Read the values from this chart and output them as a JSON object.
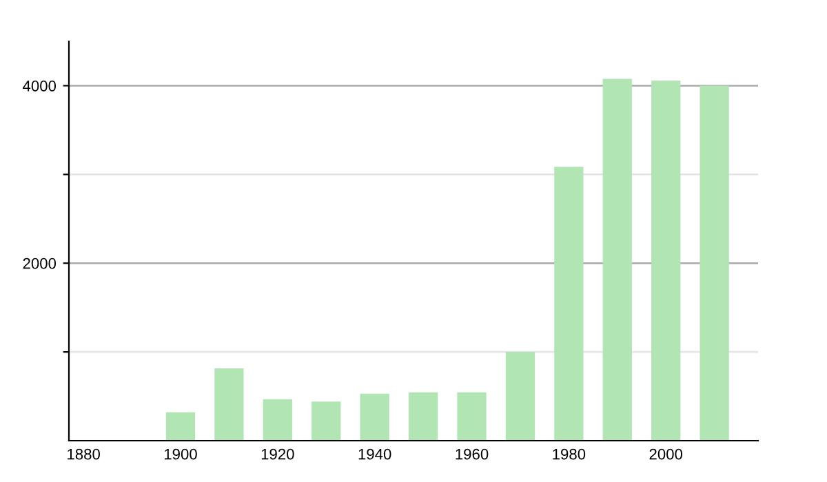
{
  "chart_data": {
    "type": "bar",
    "x": [
      1900,
      1910,
      1920,
      1930,
      1940,
      1950,
      1960,
      1970,
      1980,
      1990,
      2000,
      2010
    ],
    "values": [
      320,
      815,
      468,
      441,
      530,
      545,
      545,
      1000,
      3086,
      4078,
      4057,
      4000
    ],
    "color": "#b1e5b4",
    "xlim": [
      1877,
      2019
    ],
    "xticks": [
      1880,
      1900,
      1920,
      1940,
      1960,
      1980,
      2000
    ],
    "ylim": [
      0,
      4500
    ],
    "yticks": [
      {
        "value": 1000,
        "label": null
      },
      2000,
      {
        "value": 3000,
        "label": null
      },
      4000
    ],
    "grid": "y",
    "legend": false
  }
}
